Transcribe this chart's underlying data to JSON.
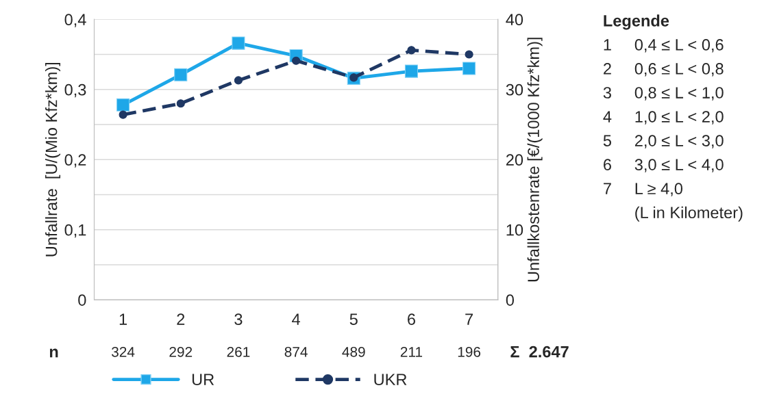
{
  "chart_data": {
    "type": "line",
    "categories": [
      "1",
      "2",
      "3",
      "4",
      "5",
      "6",
      "7"
    ],
    "series": [
      {
        "name": "UR",
        "color": "#1ea7e8",
        "marker": "square",
        "line_style": "solid",
        "values": [
          0.278,
          0.321,
          0.366,
          0.348,
          0.316,
          0.326,
          0.33
        ]
      },
      {
        "name": "UKR",
        "color": "#1f3864",
        "marker": "circle",
        "line_style": "dashed",
        "axis": "y2",
        "values": [
          26.4,
          28.0,
          31.3,
          34.1,
          31.7,
          35.6,
          35.0
        ]
      }
    ],
    "ylabel": "Unfallrate  [U/(Mio Kfz*km)]",
    "y2label": "Unfallkostenrate [€/(1000 Kfz*km)]",
    "ylim": [
      0,
      0.4
    ],
    "yticks": [
      {
        "value": 0,
        "label": "0"
      },
      {
        "value": 0.05,
        "label": null
      },
      {
        "value": 0.1,
        "label": "0,1"
      },
      {
        "value": 0.15,
        "label": null
      },
      {
        "value": 0.2,
        "label": "0,2"
      },
      {
        "value": 0.25,
        "label": null
      },
      {
        "value": 0.3,
        "label": "0,3"
      },
      {
        "value": 0.35,
        "label": null
      },
      {
        "value": 0.4,
        "label": "0,4"
      }
    ],
    "y2lim": [
      0,
      40
    ],
    "y2ticks": [
      0,
      10,
      20,
      30,
      40
    ],
    "grid": "y",
    "legend": "bottom",
    "annotations": [
      "n",
      "324",
      "292",
      "261",
      "874",
      "489",
      "211",
      "196",
      "Σ  2.647",
      "Legende",
      "1     0,4 ≤ L < 0,6",
      "2     0,6 ≤ L < 0,8",
      "3     0,8 ≤ L < 1,0",
      "4     1,0 ≤ L < 2,0",
      "5     2,0 ≤ L < 3,0",
      "6     3,0 ≤ L < 4,0",
      "7     L ≥ 4,0",
      "       (L in Kilometer)"
    ]
  }
}
